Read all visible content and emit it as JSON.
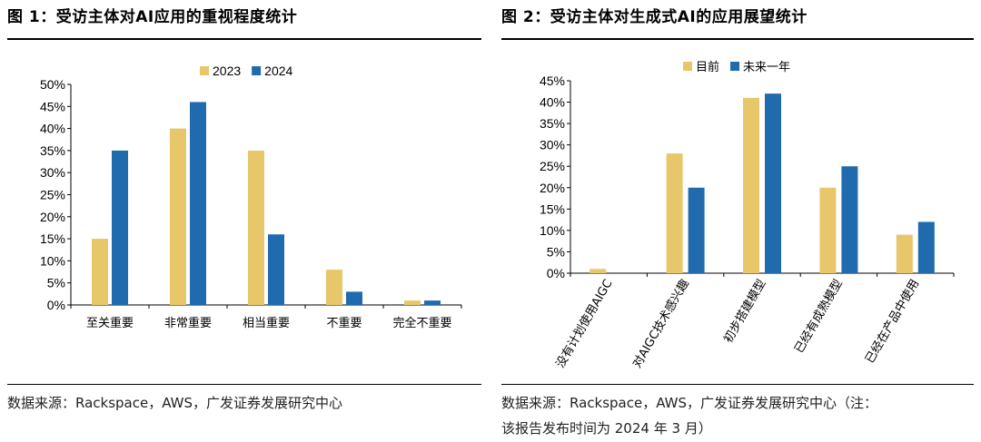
{
  "colors": {
    "c2023": "#E8C76A",
    "c2024": "#1F6BAE",
    "axis": "#000000"
  },
  "fig1": {
    "title": "图 1：受访主体对AI应用的重视程度统计",
    "source": "数据来源：Rackspace，AWS，广发证券发展研究中心",
    "chart_data": {
      "type": "bar",
      "title": "受访主体对AI应用的重视程度统计",
      "categories": [
        "至关重要",
        "非常重要",
        "相当重要",
        "不重要",
        "完全不重要"
      ],
      "series": [
        {
          "name": "2023",
          "values": [
            15,
            40,
            35,
            8,
            1
          ]
        },
        {
          "name": "2024",
          "values": [
            35,
            46,
            16,
            3,
            1
          ]
        }
      ],
      "ylim": [
        0,
        50
      ],
      "yticks": [
        "0%",
        "5%",
        "10%",
        "15%",
        "20%",
        "25%",
        "30%",
        "35%",
        "40%",
        "45%",
        "50%"
      ],
      "ytick_values": [
        0,
        5,
        10,
        15,
        20,
        25,
        30,
        35,
        40,
        45,
        50
      ],
      "xlabel": "",
      "ylabel": "",
      "legend": "top-center"
    }
  },
  "fig2": {
    "title": "图 2：受访主体对生成式AI的应用展望统计",
    "source_line1": "数据来源：Rackspace，AWS，广发证券发展研究中心（注：",
    "source_line2": "该报告发布时间为 2024 年 3 月）",
    "chart_data": {
      "type": "bar",
      "title": "受访主体对生成式AI的应用展望统计",
      "categories": [
        "没有计划使用AIGC",
        "对AIGC技术感兴趣",
        "初步搭建模型",
        "已经有成熟模型",
        "已经在产品中使用"
      ],
      "series": [
        {
          "name": "目前",
          "values": [
            1,
            28,
            41,
            20,
            9
          ]
        },
        {
          "name": "未来一年",
          "values": [
            0,
            20,
            42,
            25,
            12
          ]
        }
      ],
      "ylim": [
        0,
        45
      ],
      "yticks": [
        "0%",
        "5%",
        "10%",
        "15%",
        "20%",
        "25%",
        "30%",
        "35%",
        "40%",
        "45%"
      ],
      "ytick_values": [
        0,
        5,
        10,
        15,
        20,
        25,
        30,
        35,
        40,
        45
      ],
      "xlabel": "",
      "ylabel": "",
      "legend": "top-center"
    }
  }
}
